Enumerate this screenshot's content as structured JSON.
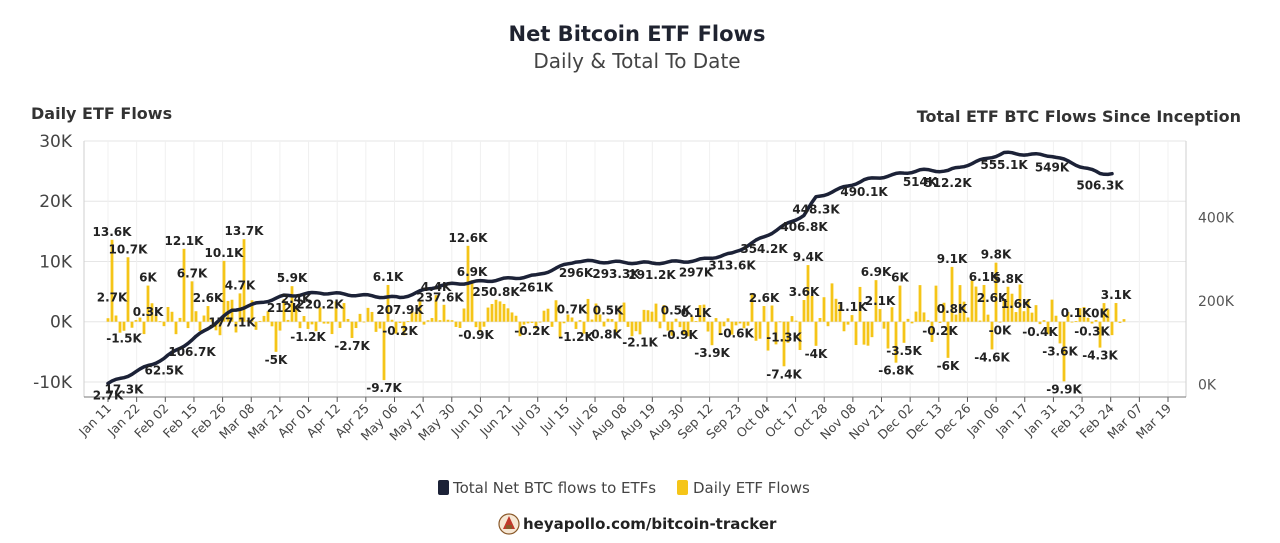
{
  "chart_data": {
    "type": "bar",
    "title": "Net Bitcoin ETF Flows",
    "subtitle": "Daily & Total To Date",
    "y_left_label": "Daily ETF Flows",
    "y_right_label": "Total ETF BTC Flows Since Inception",
    "y_left_ticks": [
      "-10K",
      "0K",
      "10K",
      "20K",
      "30K"
    ],
    "y_left_lim": [
      -12500,
      30000
    ],
    "y_right_ticks": [
      "0K",
      "200K",
      "400K"
    ],
    "y_right_lim": [
      -30000,
      584000
    ],
    "x_ticks": [
      "Jan 11",
      "Jan 22",
      "Feb 02",
      "Feb 15",
      "Feb 26",
      "Mar 08",
      "Mar 21",
      "Apr 01",
      "Apr 12",
      "Apr 25",
      "May 06",
      "May 17",
      "May 30",
      "Jun 10",
      "Jun 21",
      "Jul 03",
      "Jul 15",
      "Jul 26",
      "Aug 08",
      "Aug 19",
      "Aug 30",
      "Sep 12",
      "Sep 23",
      "Oct 04",
      "Oct 17",
      "Oct 28",
      "Nov 08",
      "Nov 21",
      "Dec 02",
      "Dec 13",
      "Dec 26",
      "Jan 06",
      "Jan 17",
      "Jan 31",
      "Feb 13",
      "Feb 24",
      "Mar 07",
      "Mar 19"
    ],
    "bar_color": "#f5c518",
    "line_color": "#1c2237",
    "legend": [
      {
        "name": "Total Net BTC flows to ETFs",
        "color": "#1c2237"
      },
      {
        "name": "Daily ETF Flows",
        "color": "#f5c518"
      }
    ],
    "legend_position": "bottom",
    "grid": true,
    "daily_labels": [
      {
        "i": 1,
        "v": 13600,
        "text": "13.6K"
      },
      {
        "i": 1,
        "v": 2700,
        "text": "2.7K"
      },
      {
        "i": 5,
        "v": 10700,
        "text": "10.7K"
      },
      {
        "i": 4,
        "v": -1500,
        "text": "-1.5K"
      },
      {
        "i": 10,
        "v": 6000,
        "text": "6K"
      },
      {
        "i": 10,
        "v": 300,
        "text": "0.3K"
      },
      {
        "i": 19,
        "v": 12100,
        "text": "12.1K"
      },
      {
        "i": 21,
        "v": 6700,
        "text": "6.7K"
      },
      {
        "i": 25,
        "v": 2600,
        "text": "2.6K"
      },
      {
        "i": 29,
        "v": 10100,
        "text": "10.1K"
      },
      {
        "i": 34,
        "v": 13700,
        "text": "13.7K"
      },
      {
        "i": 33,
        "v": 4700,
        "text": "4.7K"
      },
      {
        "i": 46,
        "v": 5900,
        "text": "5.9K"
      },
      {
        "i": 47,
        "v": 2400,
        "text": "2.4K"
      },
      {
        "i": 42,
        "v": -5000,
        "text": "-5K"
      },
      {
        "i": 50,
        "v": -1200,
        "text": "-1.2K"
      },
      {
        "i": 61,
        "v": -2700,
        "text": "-2.7K"
      },
      {
        "i": 70,
        "v": 6100,
        "text": "6.1K"
      },
      {
        "i": 73,
        "v": -200,
        "text": "-0.2K"
      },
      {
        "i": 69,
        "v": -9700,
        "text": "-9.7K"
      },
      {
        "i": 82,
        "v": 4400,
        "text": "4.4K"
      },
      {
        "i": 90,
        "v": 12600,
        "text": "12.6K"
      },
      {
        "i": 91,
        "v": 6900,
        "text": "6.9K"
      },
      {
        "i": 92,
        "v": -900,
        "text": "-0.9K"
      },
      {
        "i": 106,
        "v": -200,
        "text": "-0.2K"
      },
      {
        "i": 116,
        "v": 700,
        "text": "0.7K"
      },
      {
        "i": 117,
        "v": -1200,
        "text": "-1.2K"
      },
      {
        "i": 125,
        "v": 500,
        "text": "0.5K"
      },
      {
        "i": 124,
        "v": -800,
        "text": "-0.8K"
      },
      {
        "i": 133,
        "v": -2100,
        "text": "-2.1K"
      },
      {
        "i": 142,
        "v": 500,
        "text": "0.5K"
      },
      {
        "i": 143,
        "v": -900,
        "text": "-0.9K"
      },
      {
        "i": 147,
        "v": 100,
        "text": "0.1K"
      },
      {
        "i": 151,
        "v": -3900,
        "text": "-3.9K"
      },
      {
        "i": 157,
        "v": -600,
        "text": "-0.6K"
      },
      {
        "i": 164,
        "v": 2600,
        "text": "2.6K"
      },
      {
        "i": 169,
        "v": -1300,
        "text": "-1.3K"
      },
      {
        "i": 169,
        "v": -7400,
        "text": "-7.4K"
      },
      {
        "i": 175,
        "v": 9400,
        "text": "9.4K"
      },
      {
        "i": 174,
        "v": 3600,
        "text": "3.6K"
      },
      {
        "i": 177,
        "v": -4000,
        "text": "-4K"
      },
      {
        "i": 186,
        "v": 1100,
        "text": "1.1K"
      },
      {
        "i": 192,
        "v": 6900,
        "text": "6.9K"
      },
      {
        "i": 193,
        "v": 2100,
        "text": "2.1K"
      },
      {
        "i": 198,
        "v": 6000,
        "text": "6K"
      },
      {
        "i": 199,
        "v": -3500,
        "text": "-3.5K"
      },
      {
        "i": 197,
        "v": -6800,
        "text": "-6.8K"
      },
      {
        "i": 211,
        "v": 9100,
        "text": "9.1K"
      },
      {
        "i": 208,
        "v": -200,
        "text": "-0.2K"
      },
      {
        "i": 211,
        "v": 800,
        "text": "0.8K"
      },
      {
        "i": 210,
        "v": -6000,
        "text": "-6K"
      },
      {
        "i": 222,
        "v": 9800,
        "text": "9.8K"
      },
      {
        "i": 219,
        "v": 6100,
        "text": "6.1K"
      },
      {
        "i": 221,
        "v": 2600,
        "text": "2.6K"
      },
      {
        "i": 225,
        "v": 5800,
        "text": "5.8K"
      },
      {
        "i": 227,
        "v": 1600,
        "text": "1.6K"
      },
      {
        "i": 221,
        "v": -4600,
        "text": "-4.6K"
      },
      {
        "i": 223,
        "v": -100,
        "text": "-0K"
      },
      {
        "i": 233,
        "v": -400,
        "text": "-0.4K"
      },
      {
        "i": 242,
        "v": 100,
        "text": "0.1K"
      },
      {
        "i": 238,
        "v": -3600,
        "text": "-3.6K"
      },
      {
        "i": 239,
        "v": -9900,
        "text": "-9.9K"
      },
      {
        "i": 246,
        "v": -300,
        "text": "-0.3K"
      },
      {
        "i": 248,
        "v": 0,
        "text": "0K"
      },
      {
        "i": 248,
        "v": -4300,
        "text": "-4.3K"
      },
      {
        "i": 252,
        "v": 3100,
        "text": "3.1K"
      }
    ],
    "total_labels": [
      {
        "i": 0,
        "v": 2700,
        "text": "2.7K"
      },
      {
        "i": 4,
        "v": 17300,
        "text": "17.3K"
      },
      {
        "i": 14,
        "v": 62500,
        "text": "62.5K"
      },
      {
        "i": 21,
        "v": 106700,
        "text": "106.7K"
      },
      {
        "i": 31,
        "v": 177100,
        "text": "177.1K"
      },
      {
        "i": 44,
        "v": 212000,
        "text": "212K"
      },
      {
        "i": 53,
        "v": 220200,
        "text": "220.2K"
      },
      {
        "i": 73,
        "v": 207900,
        "text": "207.9K"
      },
      {
        "i": 83,
        "v": 237600,
        "text": "237.6K"
      },
      {
        "i": 97,
        "v": 250800,
        "text": "250.8K"
      },
      {
        "i": 107,
        "v": 261000,
        "text": "261K"
      },
      {
        "i": 117,
        "v": 296000,
        "text": "296K"
      },
      {
        "i": 127,
        "v": 293300,
        "text": "293.3K"
      },
      {
        "i": 136,
        "v": 291200,
        "text": "291.2K"
      },
      {
        "i": 147,
        "v": 297000,
        "text": "297K"
      },
      {
        "i": 156,
        "v": 313600,
        "text": "313.6K"
      },
      {
        "i": 164,
        "v": 354200,
        "text": "354.2K"
      },
      {
        "i": 174,
        "v": 406800,
        "text": "406.8K"
      },
      {
        "i": 177,
        "v": 448300,
        "text": "448.3K"
      },
      {
        "i": 189,
        "v": 490100,
        "text": "490.1K"
      },
      {
        "i": 203,
        "v": 514000,
        "text": "514K"
      },
      {
        "i": 210,
        "v": 512200,
        "text": "512.2K"
      },
      {
        "i": 224,
        "v": 555100,
        "text": "555.1K"
      },
      {
        "i": 236,
        "v": 549000,
        "text": "549K"
      },
      {
        "i": 248,
        "v": 506300,
        "text": "506.3K"
      }
    ]
  },
  "footer": {
    "source": "heyapollo.com/bitcoin-tracker",
    "logo_icon": "apollo-logo-icon"
  }
}
